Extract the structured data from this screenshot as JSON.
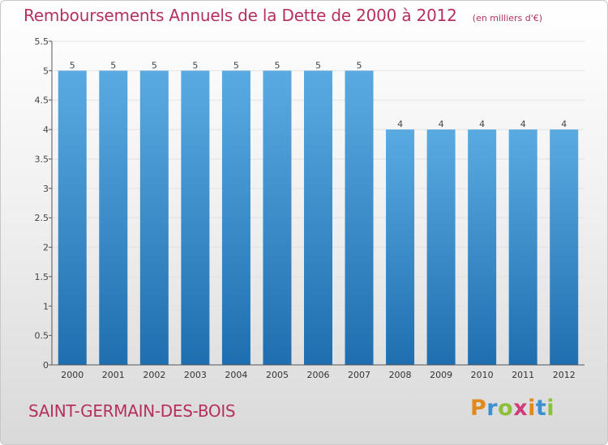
{
  "title": "Remboursements Annuels de la Dette de 2000 à 2012",
  "subtitle": "(en milliers d'€)",
  "commune": "SAINT-GERMAIN-DES-BOIS",
  "logo": "Proxiti",
  "colors": {
    "bar_light": "#5aaae2",
    "bar_dark": "#1f6fb0",
    "title": "#b5305f"
  },
  "chart_data": {
    "type": "bar",
    "categories": [
      "2000",
      "2001",
      "2002",
      "2003",
      "2004",
      "2005",
      "2006",
      "2007",
      "2008",
      "2009",
      "2010",
      "2011",
      "2012"
    ],
    "values": [
      5,
      5,
      5,
      5,
      5,
      5,
      5,
      5,
      4,
      4,
      4,
      4,
      4
    ],
    "data_labels": [
      "5",
      "5",
      "5",
      "5",
      "5",
      "5",
      "5",
      "5",
      "4",
      "4",
      "4",
      "4",
      "4"
    ],
    "ylim": [
      0,
      5.5
    ],
    "yticks": [
      0,
      0.5,
      1,
      1.5,
      2,
      2.5,
      3,
      3.5,
      4,
      4.5,
      5,
      5.5
    ],
    "ytick_labels": [
      "0",
      "0.5",
      "1",
      "1.5",
      "2",
      "2.5",
      "3",
      "3.5",
      "4",
      "4.5",
      "5",
      "5.5"
    ],
    "grid": true
  }
}
